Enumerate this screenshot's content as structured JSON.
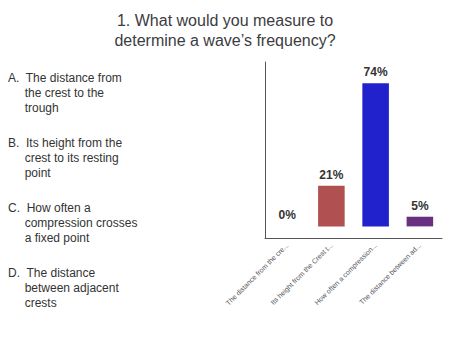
{
  "chart_data": {
    "type": "bar",
    "title": "1. What would you measure to\ndetermine a wave’s frequency?",
    "categories": [
      "The distance from the cre...",
      "Its height from the Crest t...",
      "How often a compression...",
      "The distance between ad..."
    ],
    "values": [
      0,
      21,
      74,
      5
    ],
    "value_labels": [
      "0%",
      "21%",
      "74%",
      "5%"
    ],
    "data_labels": true,
    "colors": [
      "#4848a8",
      "#b05050",
      "#2222cc",
      "#6a3080"
    ],
    "ylim": [
      -6,
      85
    ],
    "tick_labels": "x",
    "grid": false,
    "annotations": [
      "A.  The distance from\n     the crest to the\n     trough",
      "B.  Its height from the\n     crest to its resting\n     point",
      "C.  How often a\n     compression crosses\n     a fixed point",
      "D.  The distance\n     between adjacent\n     crests"
    ]
  }
}
